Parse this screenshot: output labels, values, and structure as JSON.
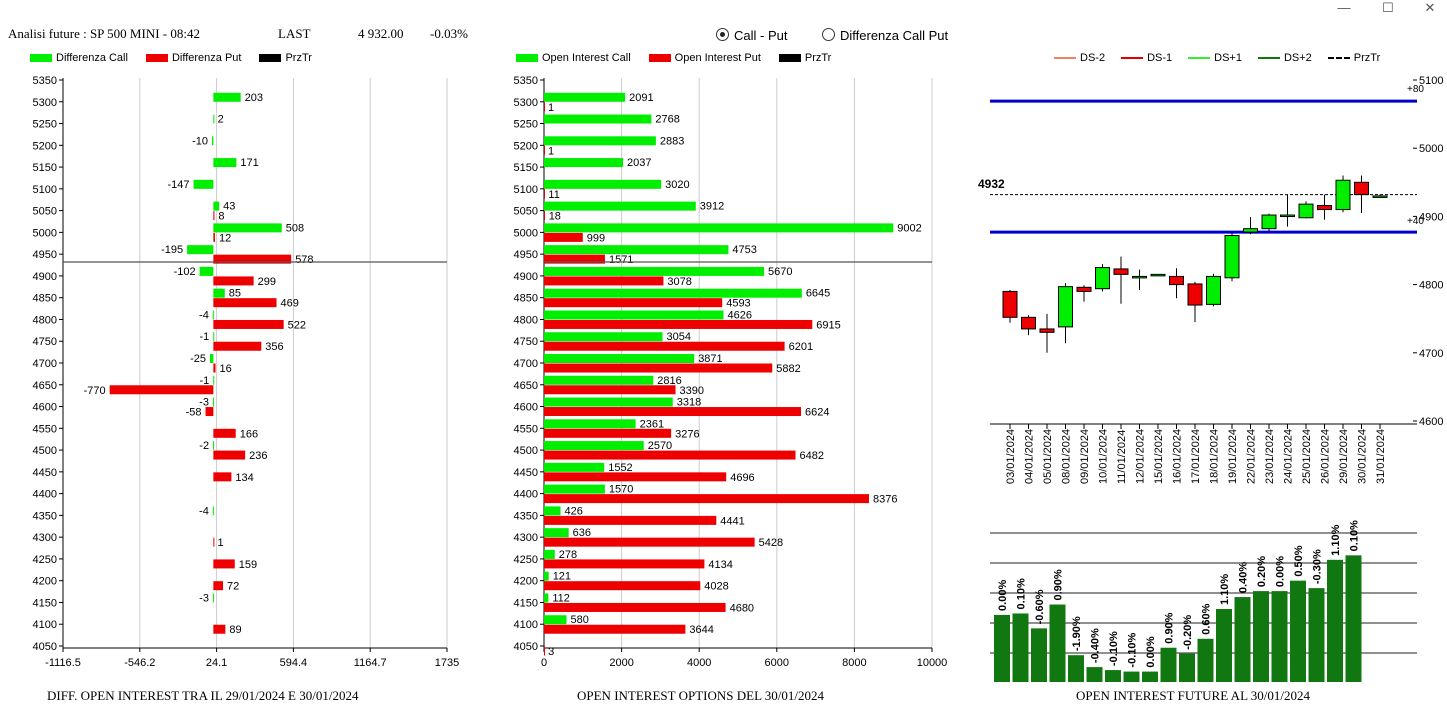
{
  "window": {
    "minimize": "—",
    "maximize": "☐",
    "close": "✕"
  },
  "header": {
    "title": "Analisi future : SP 500 MINI - 08:42",
    "last_label": "LAST",
    "last_value": "4 932.00",
    "change": "-0.03%"
  },
  "options": {
    "call_put": "Call - Put",
    "diff_call_put": "Differenza Call Put",
    "selected": "call_put"
  },
  "colors": {
    "green": "#00ee00",
    "red": "#ee0000",
    "dark_green": "#117711",
    "blue": "#0000cc",
    "ds_minus2": "#f08060",
    "ds_minus1": "#dd0000",
    "ds_plus1": "#33ee33",
    "ds_plus2": "#117711"
  },
  "left_panel": {
    "legend": [
      "Differenza Call",
      "Differenza Put",
      "PrzTr"
    ],
    "footer": "DIFF. OPEN INTEREST TRA IL 29/01/2024 E 30/01/2024"
  },
  "middle_panel": {
    "legend": [
      "Open Interest Call",
      "Open Interest Put",
      "PrzTr"
    ],
    "footer": "OPEN INTEREST OPTIONS DEL 30/01/2024"
  },
  "right_panel": {
    "legend": [
      "DS-2",
      "DS-1",
      "DS+1",
      "DS+2",
      "PrzTr"
    ],
    "price_label": "4932",
    "band_labels": [
      "+80",
      "+40"
    ],
    "footer": "OPEN INTEREST FUTURE AL 30/01/2024"
  },
  "chart_data": [
    {
      "type": "bar",
      "orientation": "horizontal",
      "name": "DIFF. OPEN INTEREST TRA IL 29/01/2024 E 30/01/2024",
      "categories": [
        5300,
        5250,
        5200,
        5150,
        5100,
        5050,
        5000,
        4950,
        4900,
        4850,
        4800,
        4750,
        4700,
        4650,
        4600,
        4550,
        4500,
        4450,
        4350,
        4300,
        4250,
        4200,
        4150,
        4100
      ],
      "series": [
        {
          "name": "Differenza Call",
          "values": [
            203,
            2,
            -10,
            171,
            -147,
            43,
            508,
            -195,
            -102,
            85,
            -4,
            -1,
            -25,
            -1,
            -3,
            null,
            -2,
            null,
            -4,
            null,
            null,
            null,
            -3,
            null
          ]
        },
        {
          "name": "Differenza Put",
          "values": [
            null,
            null,
            null,
            null,
            null,
            8,
            12,
            578,
            299,
            469,
            522,
            356,
            16,
            -770,
            -58,
            166,
            236,
            134,
            null,
            1,
            159,
            72,
            null,
            89
          ]
        }
      ],
      "y_ticks": [
        5350,
        5300,
        5250,
        5200,
        5150,
        5100,
        5050,
        5000,
        4950,
        4900,
        4850,
        4800,
        4750,
        4700,
        4650,
        4600,
        4550,
        4500,
        4450,
        4400,
        4350,
        4300,
        4250,
        4200,
        4150,
        4100,
        4050
      ],
      "x_ticks": [
        "-1116.5",
        "-546.2",
        "24.1",
        "594.4",
        "1164.7",
        "1735"
      ],
      "xlim": [
        -1116.5,
        1735
      ],
      "current_price": 4932
    },
    {
      "type": "bar",
      "orientation": "horizontal",
      "name": "OPEN INTEREST OPTIONS DEL 30/01/2024",
      "categories": [
        5300,
        5250,
        5200,
        5150,
        5100,
        5050,
        5000,
        4950,
        4900,
        4850,
        4800,
        4750,
        4700,
        4650,
        4600,
        4550,
        4500,
        4450,
        4400,
        4350,
        4300,
        4250,
        4200,
        4150,
        4100,
        4050
      ],
      "series": [
        {
          "name": "Open Interest Call",
          "values": [
            2091,
            2768,
            2883,
            2037,
            3020,
            3912,
            9002,
            4753,
            5670,
            6645,
            4626,
            3054,
            3871,
            2816,
            3318,
            2361,
            2570,
            1552,
            1570,
            426,
            636,
            278,
            121,
            112,
            580,
            null
          ]
        },
        {
          "name": "Open Interest Put",
          "values": [
            1,
            null,
            1,
            null,
            11,
            18,
            999,
            1571,
            3078,
            4593,
            6915,
            6201,
            5882,
            3390,
            6624,
            3276,
            6482,
            4696,
            8376,
            4441,
            5428,
            4134,
            4028,
            4680,
            3644,
            3
          ]
        }
      ],
      "y_ticks": [
        5350,
        5300,
        5250,
        5200,
        5150,
        5100,
        5050,
        5000,
        4950,
        4900,
        4850,
        4800,
        4750,
        4700,
        4650,
        4600,
        4550,
        4500,
        4450,
        4400,
        4350,
        4300,
        4250,
        4200,
        4150,
        4100,
        4050
      ],
      "x_ticks": [
        "0",
        "2000",
        "4000",
        "6000",
        "8000",
        "10000"
      ],
      "xlim": [
        0,
        10000
      ],
      "current_price": 4932
    },
    {
      "type": "candlestick",
      "categories": [
        "03/01/2024",
        "04/01/2024",
        "05/01/2024",
        "08/01/2024",
        "09/01/2024",
        "10/01/2024",
        "11/01/2024",
        "12/01/2024",
        "15/01/2024",
        "16/01/2024",
        "17/01/2024",
        "18/01/2024",
        "19/01/2024",
        "22/01/2024",
        "23/01/2024",
        "24/01/2024",
        "25/01/2024",
        "26/01/2024",
        "29/01/2024",
        "30/01/2024",
        "31/01/2024"
      ],
      "open": [
        4790,
        4752,
        4735,
        4738,
        4796,
        4794,
        4823,
        4812,
        4815,
        4812,
        4801,
        4771,
        4810,
        4877,
        4882,
        4902,
        4898,
        4916,
        4910,
        4950,
        4930
      ],
      "close": [
        4752,
        4735,
        4730,
        4797,
        4790,
        4825,
        4815,
        4812,
        4815,
        4800,
        4770,
        4812,
        4872,
        4882,
        4902,
        4902,
        4918,
        4910,
        4953,
        4932,
        4930
      ],
      "high": [
        4792,
        4755,
        4757,
        4802,
        4799,
        4830,
        4841,
        4822,
        4815,
        4824,
        4804,
        4816,
        4876,
        4899,
        4904,
        4932,
        4922,
        4932,
        4960,
        4960,
        4932
      ],
      "low": [
        4744,
        4726,
        4700,
        4714,
        4775,
        4790,
        4772,
        4792,
        4815,
        4780,
        4745,
        4768,
        4805,
        4874,
        4878,
        4885,
        4897,
        4895,
        4906,
        4905,
        4929
      ],
      "yaxis_ticks": [
        4600,
        4700,
        4800,
        4900,
        5000,
        5100
      ],
      "ylim": [
        4600,
        5100
      ],
      "current_price": 4932,
      "bands": [
        {
          "label": "+80",
          "value": 5069
        },
        {
          "label": "+40",
          "value": 4877
        }
      ],
      "legend": [
        "DS-2",
        "DS-1",
        "DS+1",
        "DS+2",
        "PrzTr"
      ]
    },
    {
      "type": "bar",
      "name": "OPEN INTEREST FUTURE AL 30/01/2024",
      "categories": [
        "03/01/2024",
        "04/01/2024",
        "05/01/2024",
        "08/01/2024",
        "09/01/2024",
        "10/01/2024",
        "11/01/2024",
        "12/01/2024",
        "15/01/2024",
        "16/01/2024",
        "17/01/2024",
        "18/01/2024",
        "19/01/2024",
        "22/01/2024",
        "23/01/2024",
        "24/01/2024",
        "25/01/2024",
        "26/01/2024",
        "29/01/2024",
        "30/01/2024"
      ],
      "values": [
        0.45,
        0.46,
        0.36,
        0.52,
        0.18,
        0.1,
        0.08,
        0.07,
        0.07,
        0.23,
        0.19,
        0.29,
        0.49,
        0.57,
        0.61,
        0.61,
        0.68,
        0.63,
        0.82,
        0.85
      ],
      "data_labels": [
        "0.00%",
        "0.10%",
        "-0.60%",
        "0.90%",
        "-1.90%",
        "-0.40%",
        "-0.10%",
        "-0.10%",
        "0.00%",
        "0.90%",
        "-0.20%",
        "0.60%",
        "1.10%",
        "0.40%",
        "0.20%",
        "0.00%",
        "0.50%",
        "-0.30%",
        "1.10%",
        "0.10%"
      ]
    }
  ]
}
